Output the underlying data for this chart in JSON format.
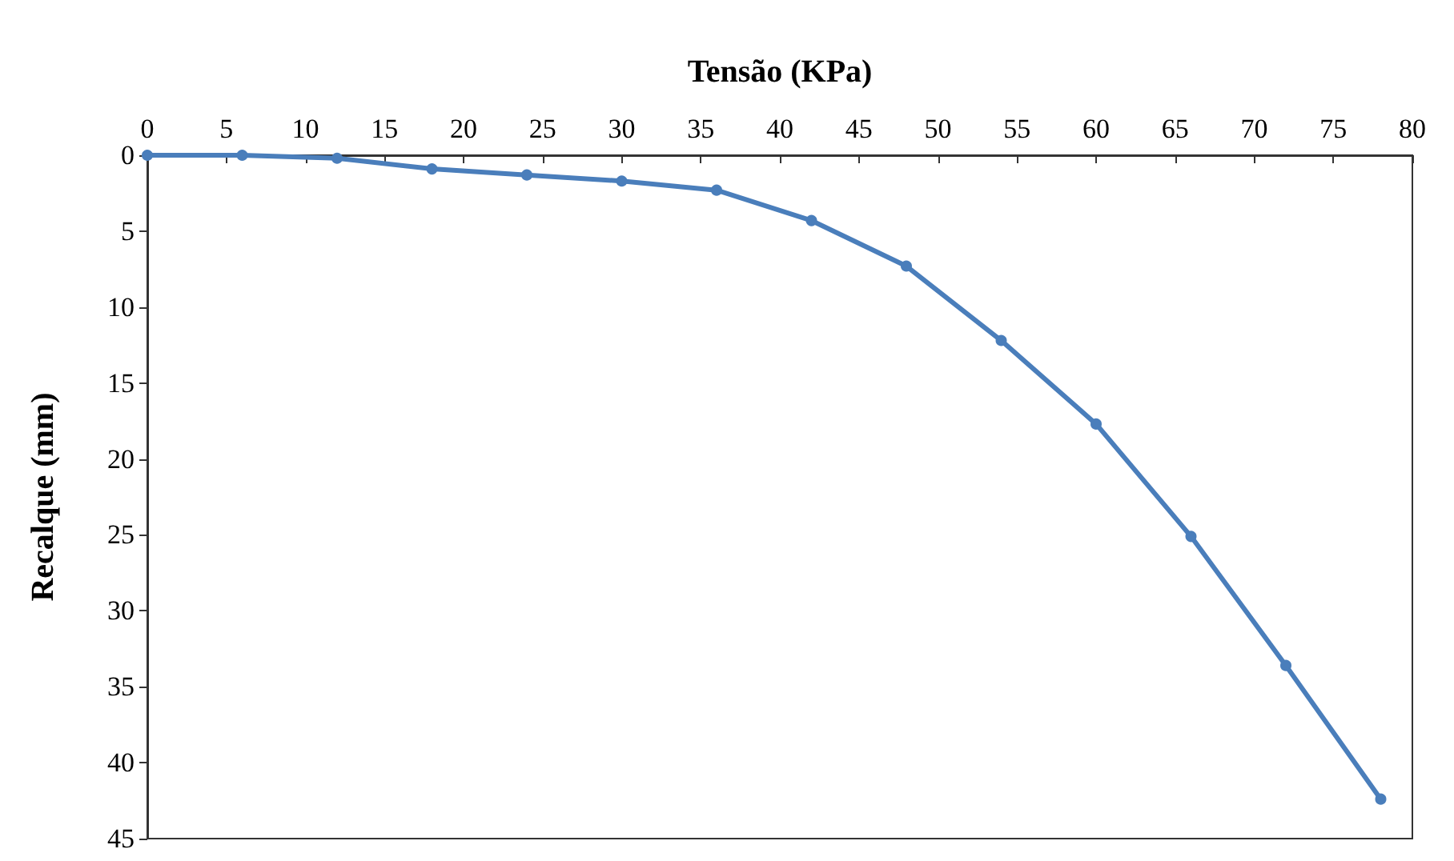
{
  "chart_data": {
    "type": "line",
    "xlabel": "Tensão (KPa)",
    "ylabel": "Recalque (mm)",
    "x": [
      0,
      6,
      12,
      18,
      24,
      30,
      36,
      42,
      48,
      54,
      60,
      66,
      72,
      78
    ],
    "series": [
      {
        "color": "#4a7ebb",
        "values": [
          0,
          0,
          0.2,
          0.9,
          1.3,
          1.7,
          2.3,
          4.3,
          7.3,
          12.2,
          17.7,
          25.1,
          33.6,
          42.4
        ]
      }
    ],
    "xlim": [
      0,
      80
    ],
    "xticks": [
      0,
      5,
      10,
      15,
      20,
      25,
      30,
      35,
      40,
      45,
      50,
      55,
      60,
      65,
      70,
      75,
      80
    ],
    "ylim": [
      45,
      0
    ],
    "yticks": [
      0,
      5,
      10,
      15,
      20,
      25,
      30,
      35,
      40,
      45
    ],
    "grid": false,
    "marker": "circle",
    "line_style": "solid"
  }
}
